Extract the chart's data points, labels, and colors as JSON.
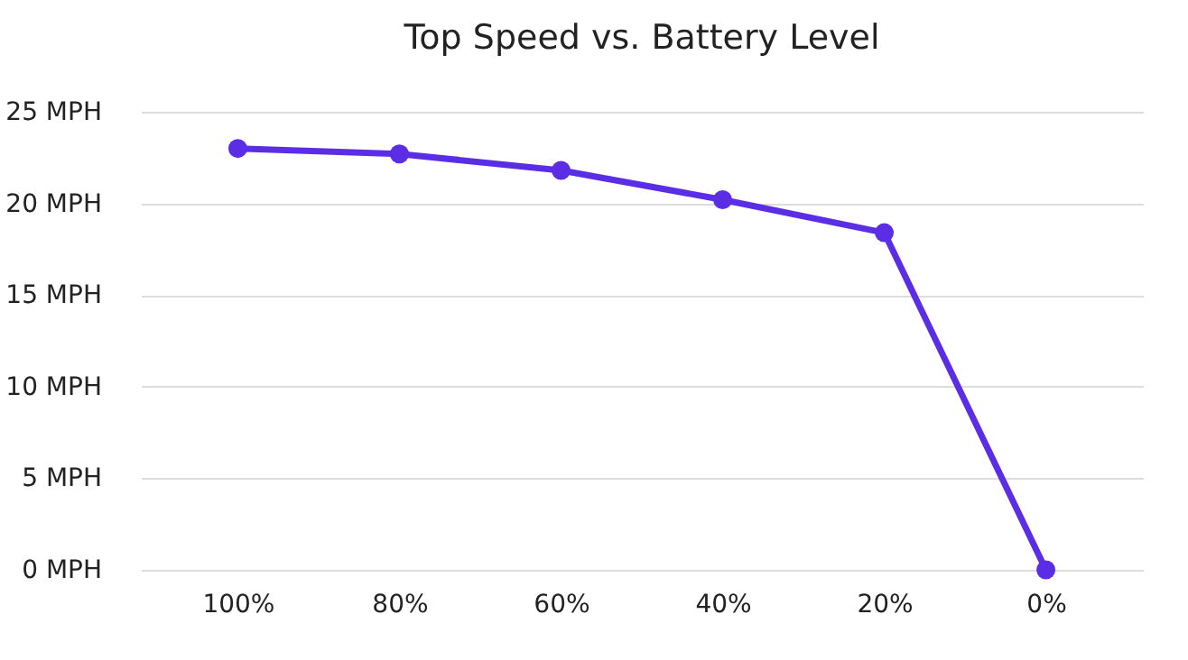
{
  "chart_data": {
    "type": "line",
    "title": "Top Speed vs. Battery Level",
    "categories": [
      "100%",
      "80%",
      "60%",
      "40%",
      "20%",
      "0%"
    ],
    "series": [
      {
        "color": "#5b2ee6",
        "values": [
          23.0,
          22.7,
          21.8,
          20.2,
          18.4,
          0
        ]
      }
    ],
    "ylim": [
      0,
      25
    ],
    "yticks": [
      {
        "value": 0,
        "label": "0 MPH"
      },
      {
        "value": 5,
        "label": "5 MPH"
      },
      {
        "value": 10,
        "label": "10 MPH"
      },
      {
        "value": 15,
        "label": "15 MPH"
      },
      {
        "value": 20,
        "label": "20 MPH"
      },
      {
        "value": 25,
        "label": "25 MPH"
      }
    ],
    "grid": "y",
    "marker": "circle",
    "line_style": "solid"
  }
}
